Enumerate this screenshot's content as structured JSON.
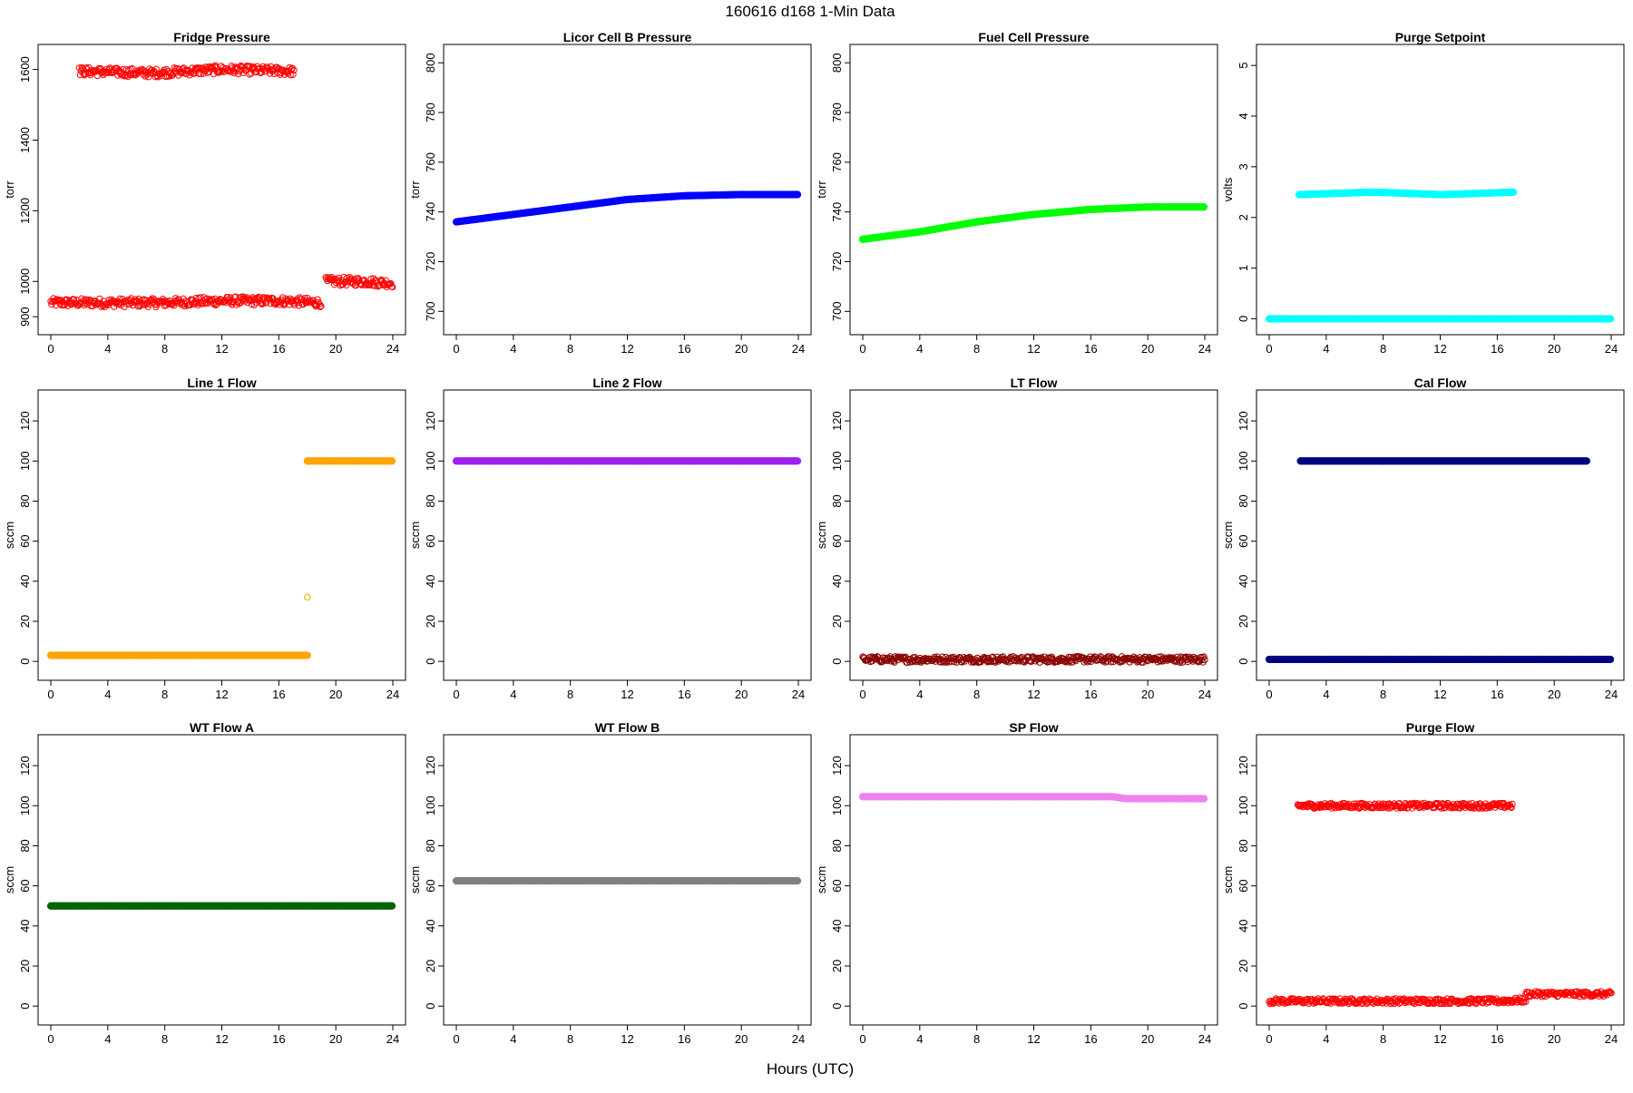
{
  "figure": {
    "title": "160616   d168   1-Min Data",
    "xlabel": "Hours (UTC)"
  },
  "chart_data": [
    {
      "type": "scatter",
      "title": "Fridge Pressure",
      "ylabel": "torr",
      "color": "#ff0000",
      "marker": "open-circle",
      "xlim": [
        0,
        24
      ],
      "ylim": [
        880,
        1640
      ],
      "xticks": [
        0,
        4,
        8,
        12,
        16,
        20,
        24
      ],
      "yticks": [
        900,
        1000,
        1200,
        1400,
        1600
      ],
      "series": [
        {
          "x": [
            0,
            4,
            8,
            12,
            16,
            19
          ],
          "y": [
            940,
            940,
            940,
            945,
            945,
            940
          ]
        },
        {
          "x": [
            19.3,
            20,
            22,
            24
          ],
          "y": [
            1000,
            1000,
            1000,
            995
          ]
        },
        {
          "x": [
            2,
            7.2,
            12,
            17.1
          ],
          "y": [
            1595,
            1590,
            1600,
            1595
          ]
        }
      ]
    },
    {
      "type": "line",
      "title": "Licor Cell B Pressure",
      "ylabel": "torr",
      "color": "#0000ff",
      "xlim": [
        0,
        24
      ],
      "ylim": [
        695,
        803
      ],
      "xticks": [
        0,
        4,
        8,
        12,
        16,
        20,
        24
      ],
      "yticks": [
        700,
        720,
        740,
        760,
        780,
        800
      ],
      "series": [
        {
          "x": [
            0,
            4,
            8,
            12,
            16,
            20,
            24
          ],
          "y": [
            736,
            739,
            742,
            745,
            746.5,
            747,
            747
          ]
        }
      ]
    },
    {
      "type": "line",
      "title": "Fuel Cell Pressure",
      "ylabel": "torr",
      "color": "#00ff00",
      "xlim": [
        0,
        24
      ],
      "ylim": [
        695,
        803
      ],
      "xticks": [
        0,
        4,
        8,
        12,
        16,
        20,
        24
      ],
      "yticks": [
        700,
        720,
        740,
        760,
        780,
        800
      ],
      "series": [
        {
          "x": [
            0,
            4,
            8,
            12,
            16,
            20,
            24
          ],
          "y": [
            729,
            732,
            736,
            739,
            741,
            742,
            742
          ]
        }
      ]
    },
    {
      "type": "scatter",
      "title": "Purge Setpoint",
      "ylabel": "volts",
      "color": "#00ffff",
      "marker": "filled-circle",
      "xlim": [
        0,
        24
      ],
      "ylim": [
        -0.1,
        5.2
      ],
      "xticks": [
        0,
        4,
        8,
        12,
        16,
        20,
        24
      ],
      "yticks": [
        0,
        1,
        2,
        3,
        4,
        5
      ],
      "series": [
        {
          "x": [
            0,
            24
          ],
          "y": [
            0,
            0
          ]
        },
        {
          "x": [
            2.1,
            7.3,
            12.1,
            17.2
          ],
          "y": [
            2.45,
            2.5,
            2.45,
            2.5
          ]
        }
      ]
    },
    {
      "type": "line",
      "title": "Line 1 Flow",
      "ylabel": "sccm",
      "color": "#ffa500",
      "xlim": [
        0,
        24
      ],
      "ylim": [
        -4,
        130
      ],
      "xticks": [
        0,
        4,
        8,
        12,
        16,
        20,
        24
      ],
      "yticks": [
        0,
        20,
        40,
        60,
        80,
        100,
        120
      ],
      "series": [
        {
          "x": [
            0,
            18
          ],
          "y": [
            3,
            3
          ]
        },
        {
          "x": [
            18,
            24
          ],
          "y": [
            100,
            100
          ]
        },
        {
          "x": [
            18
          ],
          "y": [
            32
          ]
        }
      ]
    },
    {
      "type": "line",
      "title": "Line 2 Flow",
      "ylabel": "sccm",
      "color": "#a020f0",
      "xlim": [
        0,
        24
      ],
      "ylim": [
        -4,
        130
      ],
      "xticks": [
        0,
        4,
        8,
        12,
        16,
        20,
        24
      ],
      "yticks": [
        0,
        20,
        40,
        60,
        80,
        100,
        120
      ],
      "series": [
        {
          "x": [
            0,
            24
          ],
          "y": [
            100,
            100
          ]
        }
      ]
    },
    {
      "type": "scatter",
      "title": "LT Flow",
      "ylabel": "sccm",
      "color": "#8b0000",
      "marker": "open-circle",
      "xlim": [
        0,
        24
      ],
      "ylim": [
        -4,
        130
      ],
      "xticks": [
        0,
        4,
        8,
        12,
        16,
        20,
        24
      ],
      "yticks": [
        0,
        20,
        40,
        60,
        80,
        100,
        120
      ],
      "series": [
        {
          "x": [
            0,
            24
          ],
          "y": [
            1,
            1
          ]
        }
      ]
    },
    {
      "type": "scatter",
      "title": "Cal Flow",
      "ylabel": "sccm",
      "color": "#000080",
      "marker": "filled-circle",
      "xlim": [
        0,
        24
      ],
      "ylim": [
        -4,
        130
      ],
      "xticks": [
        0,
        4,
        8,
        12,
        16,
        20,
        24
      ],
      "yticks": [
        0,
        20,
        40,
        60,
        80,
        100,
        120
      ],
      "series": [
        {
          "x": [
            0,
            24
          ],
          "y": [
            1,
            1
          ]
        },
        {
          "x": [
            2.2,
            7.3,
            12.1,
            17.2,
            22.3
          ],
          "y": [
            100,
            100,
            100,
            100,
            100
          ]
        }
      ]
    },
    {
      "type": "line",
      "title": "WT Flow A",
      "ylabel": "sccm",
      "color": "#006400",
      "xlim": [
        0,
        24
      ],
      "ylim": [
        -4,
        130
      ],
      "xticks": [
        0,
        4,
        8,
        12,
        16,
        20,
        24
      ],
      "yticks": [
        0,
        20,
        40,
        60,
        80,
        100,
        120
      ],
      "series": [
        {
          "x": [
            0,
            24
          ],
          "y": [
            50,
            50
          ]
        }
      ]
    },
    {
      "type": "line",
      "title": "WT Flow B",
      "ylabel": "sccm",
      "color": "#808080",
      "xlim": [
        0,
        24
      ],
      "ylim": [
        -4,
        130
      ],
      "xticks": [
        0,
        4,
        8,
        12,
        16,
        20,
        24
      ],
      "yticks": [
        0,
        20,
        40,
        60,
        80,
        100,
        120
      ],
      "series": [
        {
          "x": [
            0,
            24
          ],
          "y": [
            62.5,
            62.5
          ]
        }
      ]
    },
    {
      "type": "line",
      "title": "SP Flow",
      "ylabel": "sccm",
      "color": "#ee82ee",
      "xlim": [
        0,
        24
      ],
      "ylim": [
        -4,
        130
      ],
      "xticks": [
        0,
        4,
        8,
        12,
        16,
        20,
        24
      ],
      "yticks": [
        0,
        20,
        40,
        60,
        80,
        100,
        120
      ],
      "series": [
        {
          "x": [
            0,
            17.5,
            18.5,
            24
          ],
          "y": [
            104.5,
            104.5,
            103.5,
            103.5
          ]
        }
      ]
    },
    {
      "type": "scatter",
      "title": "Purge Flow",
      "ylabel": "sccm",
      "color": "#ff0000",
      "marker": "open-circle",
      "xlim": [
        0,
        24
      ],
      "ylim": [
        -4,
        130
      ],
      "xticks": [
        0,
        4,
        8,
        12,
        16,
        20,
        24
      ],
      "yticks": [
        0,
        20,
        40,
        60,
        80,
        100,
        120
      ],
      "series": [
        {
          "x": [
            0,
            4,
            8,
            12,
            16,
            18
          ],
          "y": [
            2.5,
            2.5,
            2.5,
            2.5,
            2.5,
            3
          ]
        },
        {
          "x": [
            18,
            24
          ],
          "y": [
            6,
            6
          ]
        },
        {
          "x": [
            2,
            7.2,
            12,
            17.1
          ],
          "y": [
            100,
            100,
            100,
            100
          ]
        }
      ]
    }
  ]
}
